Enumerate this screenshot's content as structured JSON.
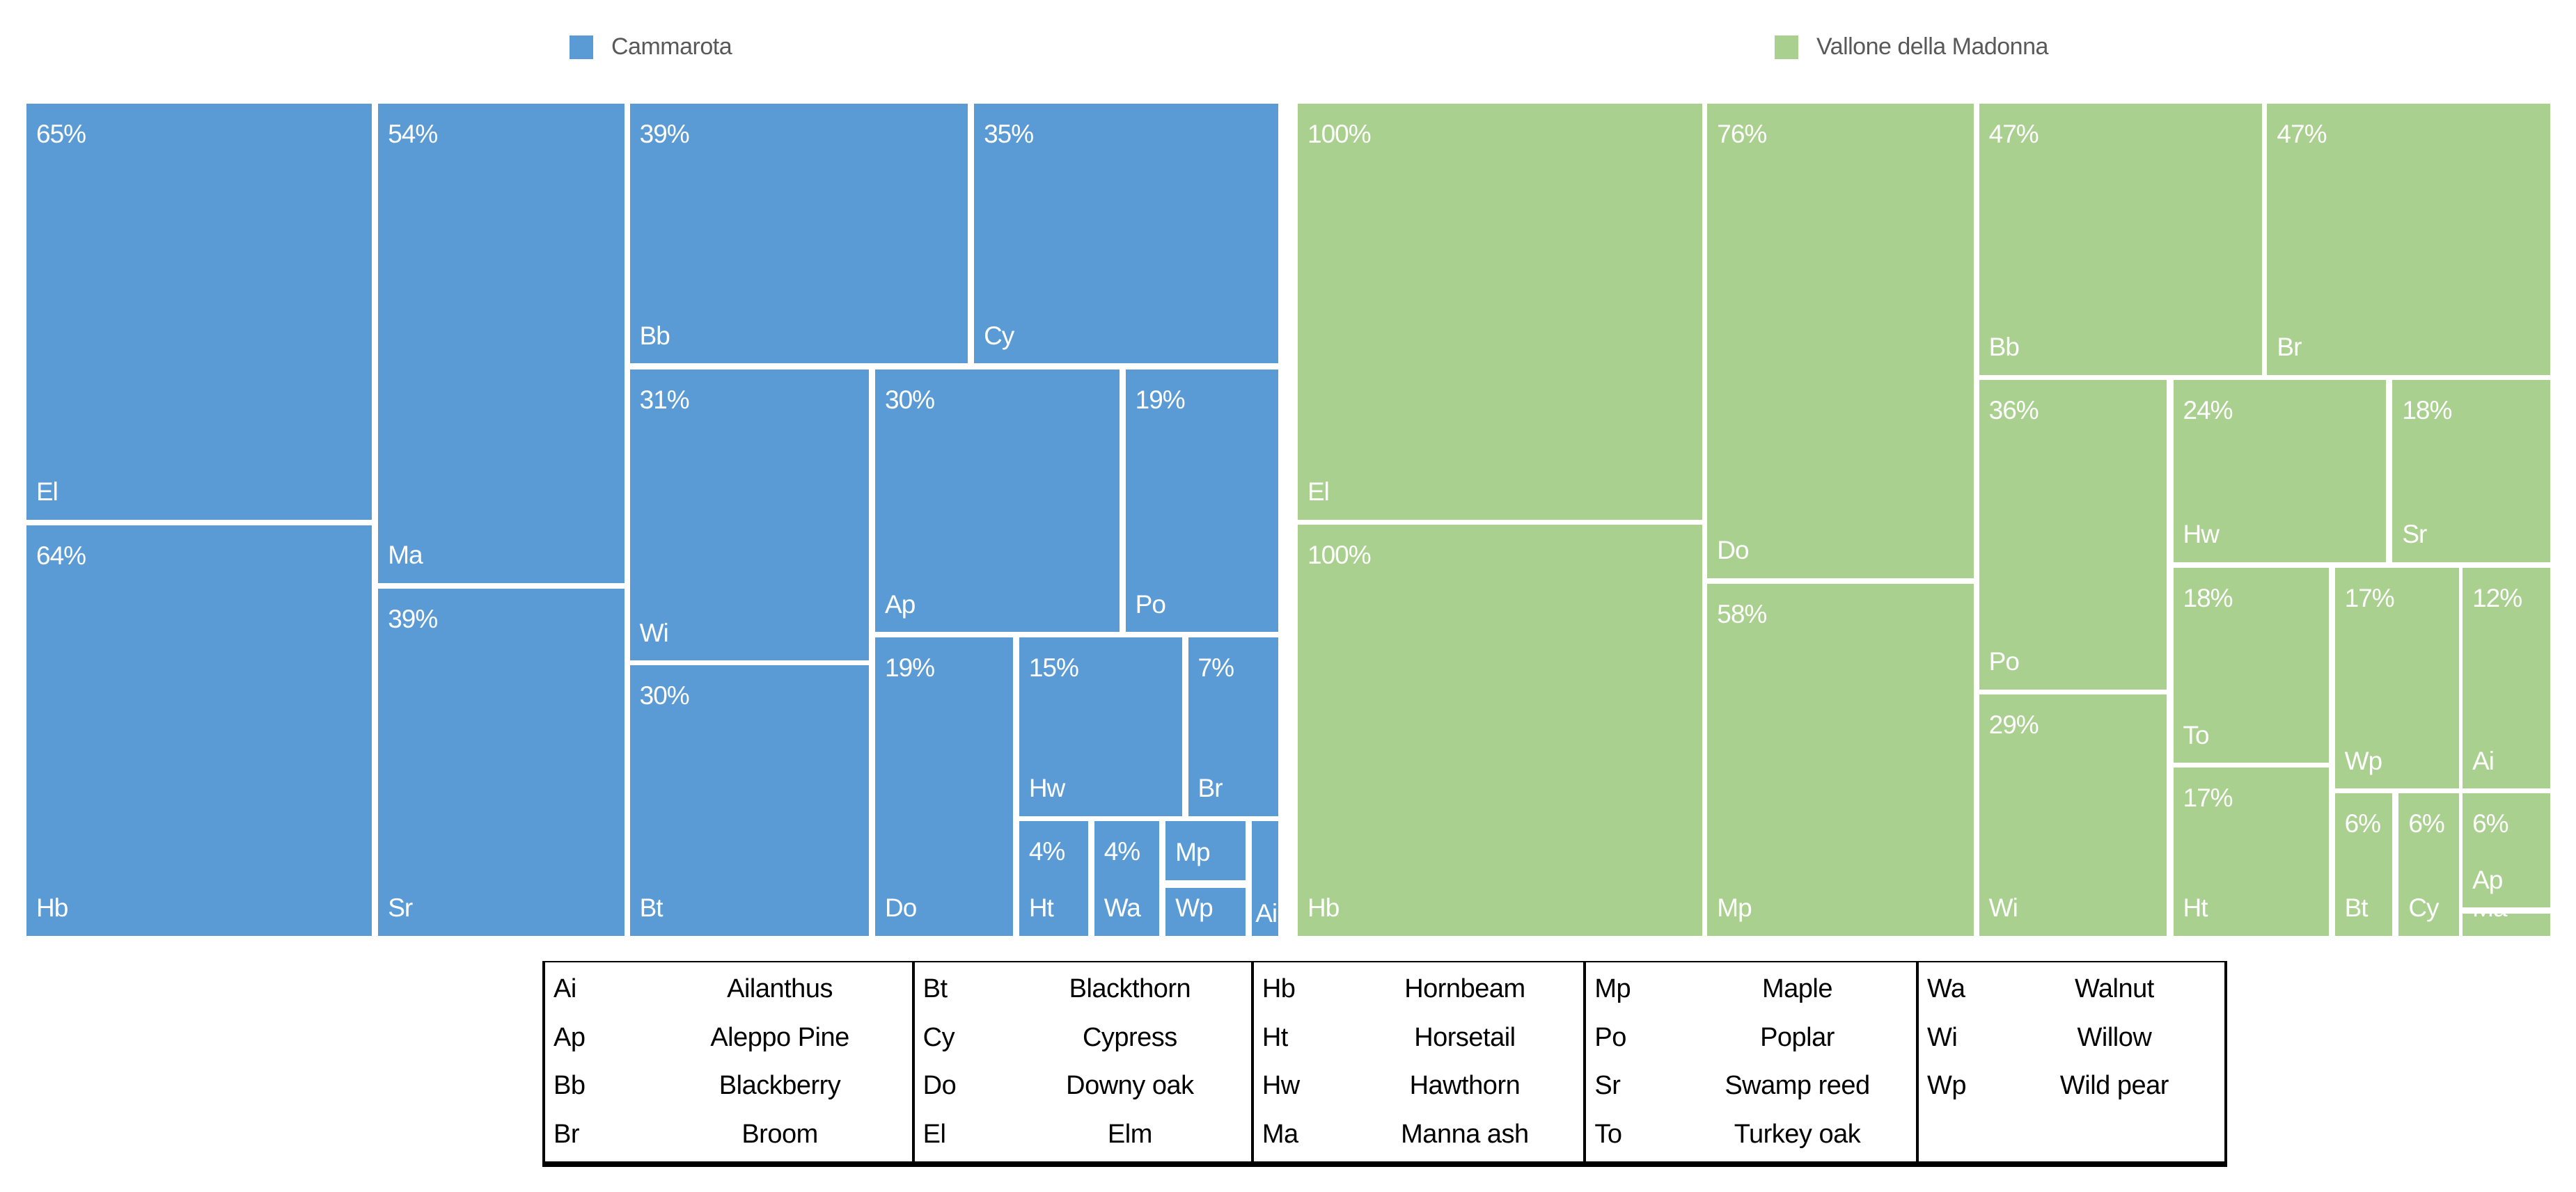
{
  "legend": [
    {
      "label": "Cammarota",
      "color": "#5B9BD5"
    },
    {
      "label": "Vallone della Madonna",
      "color": "#A9D08E"
    }
  ],
  "chart_data": {
    "type": "treemap",
    "unit": "%",
    "layout_note": "two side-by-side treemaps, percent label top-left, species abbreviation bottom-left of each tile",
    "series": [
      {
        "name": "Cammarota",
        "color": "#5B9BD5",
        "cells": [
          {
            "abbr": "El",
            "species": "Elm",
            "value": 65,
            "label": "65%",
            "rect": {
              "l": 0,
              "t": 0,
              "w": 27.6,
              "h": 50.0
            }
          },
          {
            "abbr": "Hb",
            "species": "Hornbeam",
            "value": 64,
            "label": "64%",
            "rect": {
              "l": 0,
              "t": 50.7,
              "w": 27.6,
              "h": 49.3
            }
          },
          {
            "abbr": "Ma",
            "species": "Manna ash",
            "value": 54,
            "label": "54%",
            "rect": {
              "l": 28.1,
              "t": 0,
              "w": 19.7,
              "h": 57.6
            }
          },
          {
            "abbr": "Sr",
            "species": "Swamp reed",
            "value": 39,
            "label": "39%",
            "rect": {
              "l": 28.1,
              "t": 58.3,
              "w": 19.7,
              "h": 41.7
            }
          },
          {
            "abbr": "Bb",
            "species": "Blackberry",
            "value": 39,
            "label": "39%",
            "rect": {
              "l": 48.2,
              "t": 0,
              "w": 27.0,
              "h": 31.2
            }
          },
          {
            "abbr": "Cy",
            "species": "Cypress",
            "value": 35,
            "label": "35%",
            "rect": {
              "l": 75.7,
              "t": 0,
              "w": 24.3,
              "h": 31.2
            }
          },
          {
            "abbr": "Wi",
            "species": "Willow",
            "value": 31,
            "label": "31%",
            "rect": {
              "l": 48.2,
              "t": 31.9,
              "w": 19.1,
              "h": 35.0
            }
          },
          {
            "abbr": "Ap",
            "species": "Aleppo Pine",
            "value": 30,
            "label": "30%",
            "rect": {
              "l": 67.8,
              "t": 31.9,
              "w": 19.5,
              "h": 31.6
            }
          },
          {
            "abbr": "Po",
            "species": "Poplar",
            "value": 19,
            "label": "19%",
            "rect": {
              "l": 87.8,
              "t": 31.9,
              "w": 12.2,
              "h": 31.6
            }
          },
          {
            "abbr": "Bt",
            "species": "Blackthorn",
            "value": 30,
            "label": "30%",
            "rect": {
              "l": 48.2,
              "t": 67.5,
              "w": 19.1,
              "h": 32.5
            }
          },
          {
            "abbr": "Do",
            "species": "Downy oak",
            "value": 19,
            "label": "19%",
            "rect": {
              "l": 67.8,
              "t": 64.1,
              "w": 11.0,
              "h": 35.9
            }
          },
          {
            "abbr": "Hw",
            "species": "Hawthorn",
            "value": 15,
            "label": "15%",
            "rect": {
              "l": 79.3,
              "t": 64.1,
              "w": 13.0,
              "h": 21.5
            }
          },
          {
            "abbr": "Br",
            "species": "Broom",
            "value": 7,
            "label": "7%",
            "rect": {
              "l": 92.8,
              "t": 64.1,
              "w": 7.2,
              "h": 21.5
            }
          },
          {
            "abbr": "Ht",
            "species": "Horsetail",
            "value": 4,
            "label": "4%",
            "rect": {
              "l": 79.3,
              "t": 86.2,
              "w": 5.5,
              "h": 13.8
            }
          },
          {
            "abbr": "Wa",
            "species": "Walnut",
            "value": 4,
            "label": "4%",
            "rect": {
              "l": 85.3,
              "t": 86.2,
              "w": 5.2,
              "h": 13.8
            }
          },
          {
            "abbr": "Mp",
            "species": "Maple",
            "value": null,
            "label": "",
            "rect": {
              "l": 91.0,
              "t": 86.2,
              "w": 6.4,
              "h": 7.1
            }
          },
          {
            "abbr": "Wp",
            "species": "Wild pear",
            "value": null,
            "label": "",
            "rect": {
              "l": 91.0,
              "t": 94.2,
              "w": 6.4,
              "h": 5.8
            }
          },
          {
            "abbr": "Ai",
            "species": "Ailanthus",
            "value": null,
            "label": "",
            "rect": {
              "l": 97.9,
              "t": 86.2,
              "w": 2.1,
              "h": 13.8
            }
          }
        ]
      },
      {
        "name": "Vallone della Madonna",
        "color": "#A9D08E",
        "cells": [
          {
            "abbr": "El",
            "species": "Elm",
            "value": 100,
            "label": "100%",
            "rect": {
              "l": 0,
              "t": 0,
              "w": 32.3,
              "h": 50.0
            }
          },
          {
            "abbr": "Hb",
            "species": "Hornbeam",
            "value": 100,
            "label": "100%",
            "rect": {
              "l": 0,
              "t": 50.6,
              "w": 32.3,
              "h": 49.4
            }
          },
          {
            "abbr": "Do",
            "species": "Downy oak",
            "value": 76,
            "label": "76%",
            "rect": {
              "l": 32.7,
              "t": 0,
              "w": 21.3,
              "h": 57.0
            }
          },
          {
            "abbr": "Mp",
            "species": "Maple",
            "value": 58,
            "label": "58%",
            "rect": {
              "l": 32.7,
              "t": 57.7,
              "w": 21.3,
              "h": 42.3
            }
          },
          {
            "abbr": "Bb",
            "species": "Blackberry",
            "value": 47,
            "label": "47%",
            "rect": {
              "l": 54.4,
              "t": 0,
              "w": 22.6,
              "h": 32.6
            }
          },
          {
            "abbr": "Br",
            "species": "Broom",
            "value": 47,
            "label": "47%",
            "rect": {
              "l": 77.4,
              "t": 0,
              "w": 22.6,
              "h": 32.6
            }
          },
          {
            "abbr": "Po",
            "species": "Poplar",
            "value": 36,
            "label": "36%",
            "rect": {
              "l": 54.4,
              "t": 33.2,
              "w": 15.0,
              "h": 37.2
            }
          },
          {
            "abbr": "Wi",
            "species": "Willow",
            "value": 29,
            "label": "29%",
            "rect": {
              "l": 54.4,
              "t": 71.0,
              "w": 15.0,
              "h": 29.0
            }
          },
          {
            "abbr": "Hw",
            "species": "Hawthorn",
            "value": 24,
            "label": "24%",
            "rect": {
              "l": 69.9,
              "t": 33.2,
              "w": 17.0,
              "h": 21.9
            }
          },
          {
            "abbr": "Sr",
            "species": "Swamp reed",
            "value": 18,
            "label": "18%",
            "rect": {
              "l": 87.4,
              "t": 33.2,
              "w": 12.6,
              "h": 21.9
            }
          },
          {
            "abbr": "To",
            "species": "Turkey oak",
            "value": 18,
            "label": "18%",
            "rect": {
              "l": 69.9,
              "t": 55.8,
              "w": 12.4,
              "h": 23.4
            }
          },
          {
            "abbr": "Ht",
            "species": "Horsetail",
            "value": 17,
            "label": "17%",
            "rect": {
              "l": 69.9,
              "t": 79.8,
              "w": 12.4,
              "h": 20.2
            }
          },
          {
            "abbr": "Wp",
            "species": "Wild pear",
            "value": 17,
            "label": "17%",
            "rect": {
              "l": 82.8,
              "t": 55.8,
              "w": 9.9,
              "h": 26.5
            }
          },
          {
            "abbr": "Ai",
            "species": "Ailanthus",
            "value": 12,
            "label": "12%",
            "rect": {
              "l": 93.0,
              "t": 55.8,
              "w": 7.0,
              "h": 26.5
            }
          },
          {
            "abbr": "Bt",
            "species": "Blackthorn",
            "value": 6,
            "label": "6%",
            "rect": {
              "l": 82.8,
              "t": 82.9,
              "w": 4.6,
              "h": 17.1
            }
          },
          {
            "abbr": "Cy",
            "species": "Cypress",
            "value": 6,
            "label": "6%",
            "rect": {
              "l": 87.9,
              "t": 82.9,
              "w": 4.8,
              "h": 17.1
            }
          },
          {
            "abbr": "Ap",
            "species": "Aleppo Pine",
            "value": 6,
            "label": "6%",
            "rect": {
              "l": 93.0,
              "t": 82.9,
              "w": 7.0,
              "h": 13.7
            }
          },
          {
            "abbr": "Ma",
            "species": "Manna ash",
            "value": null,
            "label": "",
            "rect": {
              "l": 93.0,
              "t": 97.3,
              "w": 7.0,
              "h": 2.7
            }
          }
        ]
      }
    ]
  },
  "species_table": {
    "columns": [
      [
        {
          "abbr": "Ai",
          "name": "Ailanthus"
        },
        {
          "abbr": "Ap",
          "name": "Aleppo Pine"
        },
        {
          "abbr": "Bb",
          "name": "Blackberry"
        },
        {
          "abbr": "Br",
          "name": "Broom"
        }
      ],
      [
        {
          "abbr": "Bt",
          "name": "Blackthorn"
        },
        {
          "abbr": "Cy",
          "name": "Cypress"
        },
        {
          "abbr": "Do",
          "name": "Downy oak"
        },
        {
          "abbr": "El",
          "name": "Elm"
        }
      ],
      [
        {
          "abbr": "Hb",
          "name": "Hornbeam"
        },
        {
          "abbr": "Ht",
          "name": "Horsetail"
        },
        {
          "abbr": "Hw",
          "name": "Hawthorn"
        },
        {
          "abbr": "Ma",
          "name": "Manna ash"
        }
      ],
      [
        {
          "abbr": "Mp",
          "name": "Maple"
        },
        {
          "abbr": "Po",
          "name": "Poplar"
        },
        {
          "abbr": "Sr",
          "name": "Swamp reed"
        },
        {
          "abbr": "To",
          "name": "Turkey oak"
        }
      ],
      [
        {
          "abbr": "Wa",
          "name": "Walnut"
        },
        {
          "abbr": "Wi",
          "name": "Willow"
        },
        {
          "abbr": "Wp",
          "name": "Wild pear"
        }
      ]
    ]
  }
}
